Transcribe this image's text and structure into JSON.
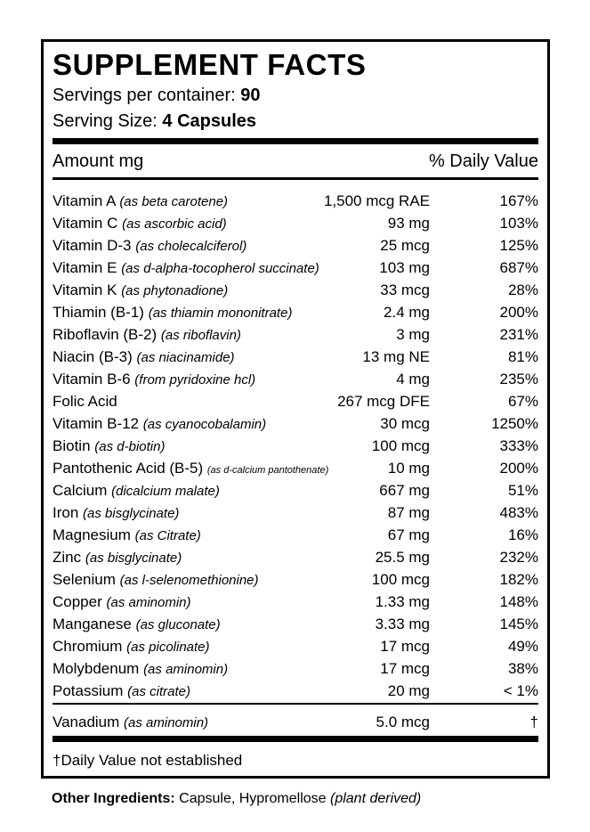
{
  "title": "SUPPLEMENT FACTS",
  "servings": {
    "label": "Servings per container: ",
    "value": "90"
  },
  "serving_size": {
    "label": "Serving Size: ",
    "value": "4 Capsules"
  },
  "header": {
    "amount": "Amount mg",
    "dv": "% Daily Value"
  },
  "rows": [
    {
      "name": "Vitamin A",
      "source": "(as beta carotene)",
      "amount": "1,500 mcg RAE",
      "dv": "167%"
    },
    {
      "name": "Vitamin C",
      "source": "(as ascorbic acid)",
      "amount": "93 mg",
      "dv": "103%"
    },
    {
      "name": "Vitamin D-3",
      "source": "(as cholecalciferol)",
      "amount": "25 mcg",
      "dv": "125%"
    },
    {
      "name": "Vitamin E",
      "source": "(as d-alpha-tocopherol succinate)",
      "amount": "103 mg",
      "dv": "687%"
    },
    {
      "name": "Vitamin K",
      "source": "(as phytonadione)",
      "amount": "33 mcg",
      "dv": "28%"
    },
    {
      "name": "Thiamin (B-1)",
      "source": "(as thiamin mononitrate)",
      "amount": "2.4 mg",
      "dv": "200%"
    },
    {
      "name": "Riboflavin (B-2)",
      "source": "(as riboflavin)",
      "amount": "3 mg",
      "dv": "231%"
    },
    {
      "name": "Niacin (B-3)",
      "source": "(as niacinamide)",
      "amount": "13 mg NE",
      "dv": "81%"
    },
    {
      "name": "Vitamin B-6",
      "source": "(from pyridoxine hcl)",
      "amount": "4 mg",
      "dv": "235%"
    },
    {
      "name": "Folic Acid",
      "source": "",
      "amount": "267 mcg DFE",
      "dv": "67%"
    },
    {
      "name": "Vitamin B-12",
      "source": "(as cyanocobalamin)",
      "amount": "30 mcg",
      "dv": "1250%"
    },
    {
      "name": "Biotin",
      "source": "(as d-biotin)",
      "amount": "100 mcg",
      "dv": "333%"
    },
    {
      "name": "Pantothenic Acid (B-5)",
      "source": "(as d-calcium pantothenate)",
      "amount": "10 mg",
      "dv": "200%"
    },
    {
      "name": "Calcium",
      "source": "(dicalcium malate)",
      "amount": "667 mg",
      "dv": "51%"
    },
    {
      "name": "Iron",
      "source": "(as bisglycinate)",
      "amount": "87 mg",
      "dv": "483%"
    },
    {
      "name": "Magnesium",
      "source": "(as Citrate)",
      "amount": "67 mg",
      "dv": "16%"
    },
    {
      "name": "Zinc",
      "source": "(as bisglycinate)",
      "amount": "25.5 mg",
      "dv": "232%"
    },
    {
      "name": "Selenium",
      "source": "(as l-selenomethionine)",
      "amount": "100 mcg",
      "dv": "182%"
    },
    {
      "name": "Copper",
      "source": "(as aminomin)",
      "amount": "1.33 mg",
      "dv": "148%"
    },
    {
      "name": "Manganese",
      "source": "(as gluconate)",
      "amount": "3.33 mg",
      "dv": "145%"
    },
    {
      "name": "Chromium",
      "source": "(as picolinate)",
      "amount": "17 mcg",
      "dv": "49%"
    },
    {
      "name": "Molybdenum",
      "source": "(as aminomin)",
      "amount": "17 mcg",
      "dv": "38%"
    },
    {
      "name": "Potassium",
      "source": "(as citrate)",
      "amount": "20 mg",
      "dv": "< 1%"
    }
  ],
  "extra_row": {
    "name": "Vanadium",
    "source": "(as aminomin)",
    "amount": "5.0 mcg",
    "dv": "†"
  },
  "footnote": "†Daily Value not established",
  "other_ingredients": {
    "label": "Other Ingredients:",
    "text": " Capsule, Hypromellose ",
    "note": "(plant derived)"
  }
}
